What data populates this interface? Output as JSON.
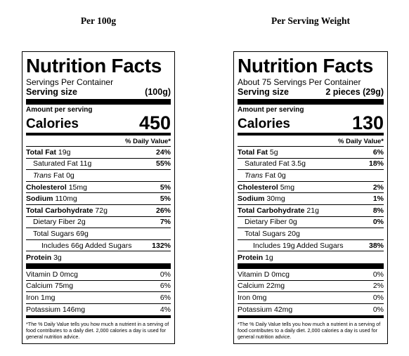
{
  "columns": {
    "left_title": "Per 100g",
    "right_title": "Per Serving Weight"
  },
  "labels": {
    "nutrition_facts": "Nutrition Facts",
    "serving_size": "Serving size",
    "amount_per_serving": "Amount per serving",
    "calories": "Calories",
    "daily_value": "% Daily Value*",
    "total_fat": "Total Fat",
    "saturated_fat": "Saturated Fat",
    "trans": "Trans",
    "trans_fat_rest": " Fat",
    "cholesterol": "Cholesterol",
    "sodium": "Sodium",
    "total_carb": "Total Carbohydrate",
    "dietary_fiber": "Dietary Fiber",
    "total_sugars": "Total Sugars",
    "includes": "Includes",
    "added_sugars": "Added Sugars",
    "protein": "Protein",
    "vitamin_d": "Vitamin D",
    "calcium": "Calcium",
    "iron": "Iron",
    "potassium": "Potassium",
    "footnote": "*The % Daily Value tells you how much a nutrient in a serving of food contributes to a daily diet. 2,000 calories a day is used for general nutrition advice."
  },
  "left": {
    "servings_per_container": "Servings Per Container",
    "serving_size_value": "(100g)",
    "calories": "450",
    "total_fat": "19g",
    "total_fat_dv": "24%",
    "saturated_fat": "11g",
    "saturated_fat_dv": "55%",
    "trans_fat": "0g",
    "cholesterol": "15mg",
    "cholesterol_dv": "5%",
    "sodium": "110mg",
    "sodium_dv": "5%",
    "total_carb": "72g",
    "total_carb_dv": "26%",
    "dietary_fiber": "2g",
    "dietary_fiber_dv": "7%",
    "total_sugars": "69g",
    "added_sugars": "66g",
    "added_sugars_dv": "132%",
    "protein": "3g",
    "vitamin_d": "0mcg",
    "vitamin_d_dv": "0%",
    "calcium": "75mg",
    "calcium_dv": "6%",
    "iron": "1mg",
    "iron_dv": "6%",
    "potassium": "146mg",
    "potassium_dv": "4%"
  },
  "right": {
    "servings_per_container": "About 75 Servings Per Container",
    "serving_size_value": "2 pieces (29g)",
    "calories": "130",
    "total_fat": "5g",
    "total_fat_dv": "6%",
    "saturated_fat": "3.5g",
    "saturated_fat_dv": "18%",
    "trans_fat": "0g",
    "cholesterol": "5mg",
    "cholesterol_dv": "2%",
    "sodium": "30mg",
    "sodium_dv": "1%",
    "total_carb": "21g",
    "total_carb_dv": "8%",
    "dietary_fiber": "0g",
    "dietary_fiber_dv": "0%",
    "total_sugars": "20g",
    "added_sugars": "19g",
    "added_sugars_dv": "38%",
    "protein": "1g",
    "vitamin_d": "0mcg",
    "vitamin_d_dv": "0%",
    "calcium": "22mg",
    "calcium_dv": "2%",
    "iron": "0mg",
    "iron_dv": "0%",
    "potassium": "42mg",
    "potassium_dv": "0%"
  }
}
